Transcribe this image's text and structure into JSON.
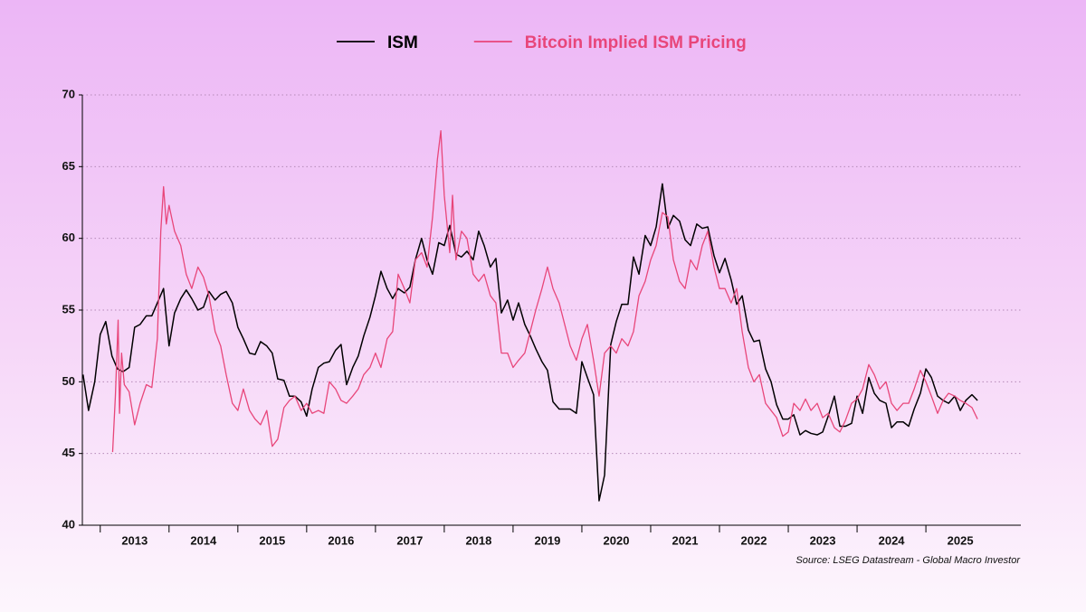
{
  "chart_data": {
    "type": "line",
    "legend": "top",
    "grid": true,
    "source": "Source: LSEG Datastream - Global Macro Investor",
    "xlim": [
      2012.74,
      2026.38
    ],
    "xticks": [
      2013,
      2014,
      2015,
      2016,
      2017,
      2018,
      2019,
      2020,
      2021,
      2022,
      2023,
      2024,
      2025
    ],
    "ylim": [
      40,
      70
    ],
    "yticks": [
      40,
      45,
      50,
      55,
      60,
      65,
      70
    ],
    "series": [
      {
        "name": "ISM",
        "color": "#000000",
        "x": [
          2012.75,
          2012.83,
          2012.92,
          2013.0,
          2013.08,
          2013.17,
          2013.25,
          2013.33,
          2013.42,
          2013.5,
          2013.58,
          2013.67,
          2013.75,
          2013.83,
          2013.92,
          2014.0,
          2014.08,
          2014.17,
          2014.25,
          2014.33,
          2014.42,
          2014.5,
          2014.58,
          2014.67,
          2014.75,
          2014.83,
          2014.92,
          2015.0,
          2015.08,
          2015.17,
          2015.25,
          2015.33,
          2015.42,
          2015.5,
          2015.58,
          2015.67,
          2015.75,
          2015.83,
          2015.92,
          2016.0,
          2016.08,
          2016.17,
          2016.25,
          2016.33,
          2016.42,
          2016.5,
          2016.58,
          2016.67,
          2016.75,
          2016.83,
          2016.92,
          2017.0,
          2017.08,
          2017.17,
          2017.25,
          2017.33,
          2017.42,
          2017.5,
          2017.58,
          2017.67,
          2017.75,
          2017.83,
          2017.92,
          2018.0,
          2018.08,
          2018.17,
          2018.25,
          2018.33,
          2018.42,
          2018.5,
          2018.58,
          2018.67,
          2018.75,
          2018.83,
          2018.92,
          2019.0,
          2019.08,
          2019.17,
          2019.25,
          2019.33,
          2019.42,
          2019.5,
          2019.58,
          2019.67,
          2019.75,
          2019.83,
          2019.92,
          2020.0,
          2020.08,
          2020.17,
          2020.25,
          2020.33,
          2020.42,
          2020.5,
          2020.58,
          2020.67,
          2020.75,
          2020.83,
          2020.92,
          2021.0,
          2021.08,
          2021.17,
          2021.25,
          2021.33,
          2021.42,
          2021.5,
          2021.58,
          2021.67,
          2021.75,
          2021.83,
          2021.92,
          2022.0,
          2022.08,
          2022.17,
          2022.25,
          2022.33,
          2022.42,
          2022.5,
          2022.58,
          2022.67,
          2022.75,
          2022.83,
          2022.92,
          2023.0,
          2023.08,
          2023.17,
          2023.25,
          2023.33,
          2023.42,
          2023.5,
          2023.58,
          2023.67,
          2023.75,
          2023.83,
          2023.92,
          2024.0,
          2024.08,
          2024.17,
          2024.25,
          2024.33,
          2024.42,
          2024.5,
          2024.58,
          2024.67,
          2024.75,
          2024.83,
          2024.92,
          2025.0,
          2025.08,
          2025.17,
          2025.25,
          2025.33,
          2025.42,
          2025.5,
          2025.58,
          2025.67,
          2025.75
        ],
        "values": [
          50.5,
          48.0,
          50.0,
          53.3,
          54.2,
          51.8,
          50.9,
          50.7,
          51.0,
          53.8,
          54.0,
          54.6,
          54.6,
          55.5,
          56.5,
          52.5,
          54.8,
          55.8,
          56.4,
          55.8,
          55.0,
          55.2,
          56.3,
          55.7,
          56.1,
          56.3,
          55.5,
          53.8,
          53.0,
          52.0,
          51.9,
          52.8,
          52.5,
          52.0,
          50.2,
          50.1,
          49.0,
          49.0,
          48.6,
          47.6,
          49.5,
          51.0,
          51.3,
          51.4,
          52.2,
          52.6,
          49.8,
          51.0,
          51.8,
          53.2,
          54.5,
          56.0,
          57.7,
          56.5,
          55.8,
          56.5,
          56.2,
          56.6,
          58.5,
          60.0,
          58.5,
          57.5,
          59.7,
          59.5,
          60.9,
          58.9,
          58.7,
          59.1,
          58.5,
          60.5,
          59.5,
          58.0,
          58.6,
          54.8,
          55.7,
          54.3,
          55.5,
          54.0,
          53.2,
          52.3,
          51.4,
          50.8,
          48.6,
          48.1,
          48.1,
          48.1,
          47.8,
          51.4,
          50.3,
          49.1,
          41.7,
          43.5,
          52.6,
          54.2,
          55.4,
          55.4,
          58.7,
          57.5,
          60.2,
          59.5,
          60.8,
          63.8,
          60.7,
          61.6,
          61.2,
          59.9,
          59.5,
          61.0,
          60.7,
          60.8,
          58.8,
          57.6,
          58.6,
          57.1,
          55.4,
          56.0,
          53.6,
          52.8,
          52.9,
          50.9,
          50.0,
          48.4,
          47.4,
          47.4,
          47.7,
          46.3,
          46.6,
          46.4,
          46.3,
          46.5,
          47.6,
          49.0,
          46.9,
          46.9,
          47.1,
          49.0,
          47.8,
          50.3,
          49.2,
          48.7,
          48.5,
          46.8,
          47.2,
          47.2,
          46.9,
          48.1,
          49.2,
          50.9,
          50.3,
          49.0,
          48.7,
          48.5,
          49.0,
          48.0,
          48.7,
          49.1,
          48.7
        ]
      },
      {
        "name": "Bitcoin Implied ISM Pricing",
        "color": "#e8467a",
        "x": [
          2013.18,
          2013.22,
          2013.26,
          2013.28,
          2013.31,
          2013.35,
          2013.42,
          2013.5,
          2013.58,
          2013.67,
          2013.75,
          2013.83,
          2013.88,
          2013.92,
          2013.96,
          2014.0,
          2014.08,
          2014.17,
          2014.25,
          2014.33,
          2014.42,
          2014.5,
          2014.58,
          2014.67,
          2014.75,
          2014.83,
          2014.92,
          2015.0,
          2015.08,
          2015.17,
          2015.25,
          2015.33,
          2015.42,
          2015.5,
          2015.58,
          2015.67,
          2015.75,
          2015.83,
          2015.92,
          2016.0,
          2016.08,
          2016.17,
          2016.25,
          2016.33,
          2016.42,
          2016.5,
          2016.58,
          2016.67,
          2016.75,
          2016.83,
          2016.92,
          2017.0,
          2017.08,
          2017.17,
          2017.25,
          2017.33,
          2017.42,
          2017.5,
          2017.58,
          2017.67,
          2017.75,
          2017.83,
          2017.9,
          2017.95,
          2018.0,
          2018.08,
          2018.12,
          2018.17,
          2018.25,
          2018.33,
          2018.42,
          2018.5,
          2018.58,
          2018.67,
          2018.75,
          2018.83,
          2018.92,
          2019.0,
          2019.08,
          2019.17,
          2019.25,
          2019.33,
          2019.42,
          2019.5,
          2019.58,
          2019.67,
          2019.75,
          2019.83,
          2019.92,
          2020.0,
          2020.08,
          2020.17,
          2020.25,
          2020.33,
          2020.42,
          2020.5,
          2020.58,
          2020.67,
          2020.75,
          2020.83,
          2020.92,
          2021.0,
          2021.08,
          2021.17,
          2021.25,
          2021.33,
          2021.42,
          2021.5,
          2021.58,
          2021.67,
          2021.75,
          2021.83,
          2021.92,
          2022.0,
          2022.08,
          2022.17,
          2022.25,
          2022.33,
          2022.42,
          2022.5,
          2022.58,
          2022.67,
          2022.75,
          2022.83,
          2022.92,
          2023.0,
          2023.08,
          2023.17,
          2023.25,
          2023.33,
          2023.42,
          2023.5,
          2023.58,
          2023.67,
          2023.75,
          2023.83,
          2023.92,
          2024.0,
          2024.08,
          2024.17,
          2024.25,
          2024.33,
          2024.42,
          2024.5,
          2024.58,
          2024.67,
          2024.75,
          2024.83,
          2024.92,
          2025.0,
          2025.08,
          2025.17,
          2025.25,
          2025.33,
          2025.42,
          2025.5,
          2025.58,
          2025.67,
          2025.75
        ],
        "values": [
          45.1,
          49.0,
          54.3,
          47.8,
          52.0,
          49.8,
          49.3,
          47.0,
          48.5,
          49.8,
          49.6,
          53.0,
          60.5,
          63.6,
          61.0,
          62.3,
          60.5,
          59.5,
          57.5,
          56.5,
          58.0,
          57.3,
          56.0,
          53.5,
          52.5,
          50.5,
          48.5,
          48.0,
          49.5,
          48.0,
          47.4,
          47.0,
          48.0,
          45.5,
          46.0,
          48.2,
          48.7,
          49.0,
          48.0,
          48.5,
          47.8,
          48.0,
          47.8,
          50.0,
          49.5,
          48.7,
          48.5,
          49.0,
          49.5,
          50.5,
          51.0,
          52.0,
          51.0,
          53.0,
          53.5,
          57.5,
          56.5,
          55.5,
          58.5,
          59.0,
          58.0,
          61.5,
          65.5,
          67.5,
          63.0,
          59.0,
          63.0,
          58.5,
          60.5,
          60.0,
          57.5,
          57.0,
          57.5,
          56.0,
          55.5,
          52.0,
          52.0,
          51.0,
          51.5,
          52.0,
          53.5,
          55.0,
          56.5,
          58.0,
          56.5,
          55.5,
          54.0,
          52.5,
          51.5,
          53.0,
          54.0,
          51.5,
          49.0,
          52.0,
          52.5,
          52.0,
          53.0,
          52.5,
          53.5,
          56.0,
          57.0,
          58.5,
          59.5,
          61.8,
          61.5,
          58.5,
          57.0,
          56.5,
          58.5,
          57.8,
          59.5,
          60.5,
          58.0,
          56.5,
          56.5,
          55.5,
          56.5,
          53.5,
          51.0,
          50.0,
          50.5,
          48.5,
          48.0,
          47.5,
          46.2,
          46.5,
          48.5,
          48.0,
          48.8,
          48.0,
          48.5,
          47.5,
          47.8,
          46.8,
          46.5,
          47.3,
          48.5,
          48.8,
          49.5,
          51.2,
          50.5,
          49.5,
          50.0,
          48.5,
          48.0,
          48.5,
          48.5,
          49.5,
          50.8,
          50.0,
          49.0,
          47.8,
          48.7,
          49.2,
          49.0,
          48.7,
          48.5,
          48.2,
          47.4
        ]
      }
    ]
  }
}
